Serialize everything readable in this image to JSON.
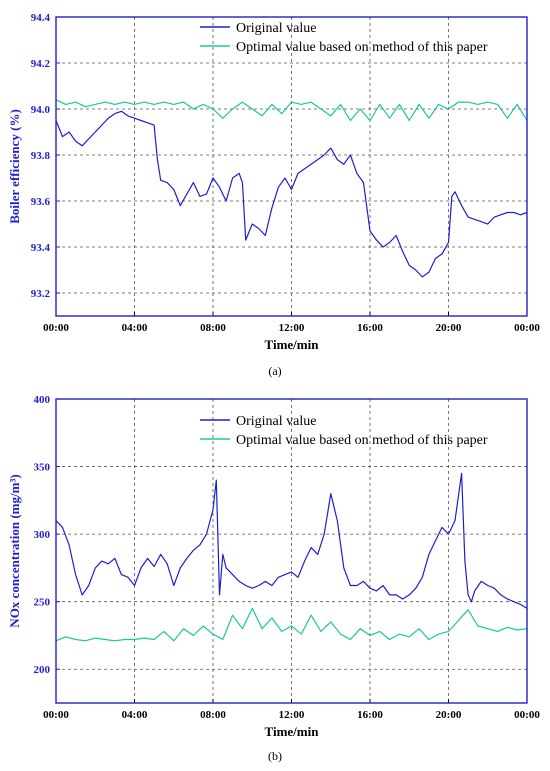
{
  "colors": {
    "original": "#1f1fd1",
    "optimal": "#18c99a",
    "axis_left": "#1f1fd1",
    "axis": "#1f1fd1",
    "grid": "#555555"
  },
  "chart_data": [
    {
      "type": "line",
      "panel_label": "(a)",
      "xlabel": "Time/min",
      "ylabel": "Boiler efficiency (%)",
      "ylim": [
        93.1,
        94.4
      ],
      "xlim": [
        0,
        1440
      ],
      "x_ticks": [
        "00:00",
        "04:00",
        "08:00",
        "12:00",
        "16:00",
        "20:00",
        "00:00"
      ],
      "y_ticks": [
        "93.2",
        "93.4",
        "93.6",
        "93.8",
        "94.0",
        "94.2",
        "94.4"
      ],
      "grid": true,
      "legend_position": "top-right",
      "series": [
        {
          "name": "Original value",
          "x": [
            0,
            20,
            40,
            60,
            80,
            100,
            120,
            140,
            160,
            180,
            200,
            220,
            240,
            260,
            280,
            300,
            310,
            320,
            340,
            360,
            380,
            400,
            420,
            440,
            460,
            480,
            500,
            520,
            540,
            560,
            570,
            580,
            600,
            620,
            640,
            660,
            680,
            700,
            720,
            740,
            760,
            780,
            800,
            820,
            840,
            860,
            880,
            900,
            920,
            940,
            960,
            980,
            1000,
            1020,
            1040,
            1060,
            1080,
            1100,
            1120,
            1140,
            1160,
            1180,
            1200,
            1210,
            1220,
            1240,
            1260,
            1280,
            1300,
            1320,
            1340,
            1360,
            1380,
            1400,
            1420,
            1440
          ],
          "values": [
            93.95,
            93.88,
            93.9,
            93.86,
            93.84,
            93.87,
            93.9,
            93.93,
            93.96,
            93.98,
            93.99,
            93.97,
            93.96,
            93.95,
            93.94,
            93.93,
            93.78,
            93.69,
            93.68,
            93.65,
            93.58,
            93.63,
            93.68,
            93.62,
            93.63,
            93.7,
            93.66,
            93.6,
            93.7,
            93.72,
            93.68,
            93.43,
            93.5,
            93.48,
            93.45,
            93.57,
            93.66,
            93.7,
            93.65,
            93.72,
            93.74,
            93.76,
            93.78,
            93.8,
            93.83,
            93.78,
            93.76,
            93.8,
            93.72,
            93.68,
            93.47,
            93.43,
            93.4,
            93.42,
            93.45,
            93.38,
            93.32,
            93.3,
            93.27,
            93.29,
            93.35,
            93.37,
            93.42,
            93.62,
            93.64,
            93.58,
            93.53,
            93.52,
            93.51,
            93.5,
            93.53,
            93.54,
            93.55,
            93.55,
            93.54,
            93.55
          ]
        },
        {
          "name": "Optimal value based on method of this paper",
          "x": [
            0,
            30,
            60,
            90,
            120,
            150,
            180,
            210,
            240,
            270,
            300,
            330,
            360,
            390,
            420,
            450,
            480,
            510,
            540,
            570,
            600,
            630,
            660,
            690,
            720,
            750,
            780,
            810,
            840,
            870,
            900,
            930,
            960,
            990,
            1020,
            1050,
            1080,
            1110,
            1140,
            1170,
            1200,
            1230,
            1260,
            1290,
            1320,
            1350,
            1380,
            1410,
            1440
          ],
          "values": [
            94.04,
            94.02,
            94.03,
            94.01,
            94.02,
            94.03,
            94.02,
            94.03,
            94.02,
            94.03,
            94.02,
            94.03,
            94.02,
            94.03,
            94.0,
            94.02,
            94.0,
            93.96,
            94.0,
            94.03,
            94.0,
            93.97,
            94.02,
            93.98,
            94.03,
            94.02,
            94.03,
            94.0,
            93.97,
            94.02,
            93.95,
            94.0,
            93.95,
            94.02,
            93.96,
            94.02,
            93.95,
            94.02,
            93.96,
            94.02,
            94.0,
            94.03,
            94.03,
            94.02,
            94.03,
            94.02,
            93.96,
            94.02,
            93.95
          ]
        }
      ]
    },
    {
      "type": "line",
      "panel_label": "(b)",
      "xlabel": "Time/min",
      "ylabel": "NOx concentration (mg/m³)",
      "ylim": [
        175,
        400
      ],
      "xlim": [
        0,
        1440
      ],
      "x_ticks": [
        "00:00",
        "04:00",
        "08:00",
        "12:00",
        "16:00",
        "20:00",
        "00:00"
      ],
      "y_ticks": [
        "200",
        "250",
        "300",
        "350",
        "400"
      ],
      "grid": true,
      "legend_position": "top-right",
      "series": [
        {
          "name": "Original value",
          "x": [
            0,
            20,
            40,
            60,
            80,
            100,
            120,
            140,
            160,
            180,
            200,
            220,
            240,
            260,
            280,
            300,
            320,
            340,
            360,
            380,
            400,
            420,
            440,
            460,
            480,
            490,
            500,
            510,
            520,
            540,
            560,
            580,
            600,
            620,
            640,
            660,
            680,
            700,
            720,
            740,
            760,
            780,
            800,
            820,
            840,
            860,
            880,
            900,
            920,
            940,
            960,
            980,
            1000,
            1020,
            1040,
            1060,
            1080,
            1100,
            1120,
            1140,
            1160,
            1180,
            1200,
            1220,
            1240,
            1250,
            1260,
            1270,
            1280,
            1300,
            1320,
            1340,
            1360,
            1380,
            1400,
            1420,
            1440
          ],
          "values": [
            310,
            305,
            292,
            270,
            255,
            262,
            275,
            280,
            278,
            282,
            270,
            268,
            262,
            275,
            282,
            276,
            285,
            278,
            262,
            275,
            282,
            288,
            292,
            300,
            318,
            340,
            255,
            285,
            275,
            270,
            265,
            262,
            260,
            262,
            265,
            262,
            268,
            270,
            272,
            268,
            280,
            290,
            285,
            300,
            330,
            310,
            275,
            262,
            262,
            265,
            260,
            258,
            262,
            255,
            255,
            252,
            255,
            260,
            268,
            285,
            295,
            305,
            300,
            310,
            345,
            280,
            255,
            250,
            258,
            265,
            262,
            260,
            255,
            252,
            250,
            248,
            245
          ]
        },
        {
          "name": "Optimal value based on method of this paper",
          "x": [
            0,
            30,
            60,
            90,
            120,
            150,
            180,
            210,
            240,
            270,
            300,
            330,
            360,
            390,
            420,
            450,
            480,
            510,
            540,
            570,
            600,
            630,
            660,
            690,
            720,
            750,
            780,
            810,
            840,
            870,
            900,
            930,
            960,
            990,
            1020,
            1050,
            1080,
            1110,
            1140,
            1170,
            1200,
            1230,
            1260,
            1290,
            1320,
            1350,
            1380,
            1410,
            1440
          ],
          "values": [
            221,
            224,
            222,
            221,
            223,
            222,
            221,
            222,
            222,
            223,
            222,
            228,
            221,
            230,
            225,
            232,
            226,
            222,
            240,
            230,
            245,
            230,
            238,
            228,
            232,
            226,
            240,
            228,
            235,
            226,
            222,
            230,
            225,
            228,
            222,
            226,
            224,
            230,
            222,
            226,
            228,
            236,
            244,
            232,
            230,
            228,
            231,
            229,
            230
          ]
        }
      ]
    }
  ]
}
